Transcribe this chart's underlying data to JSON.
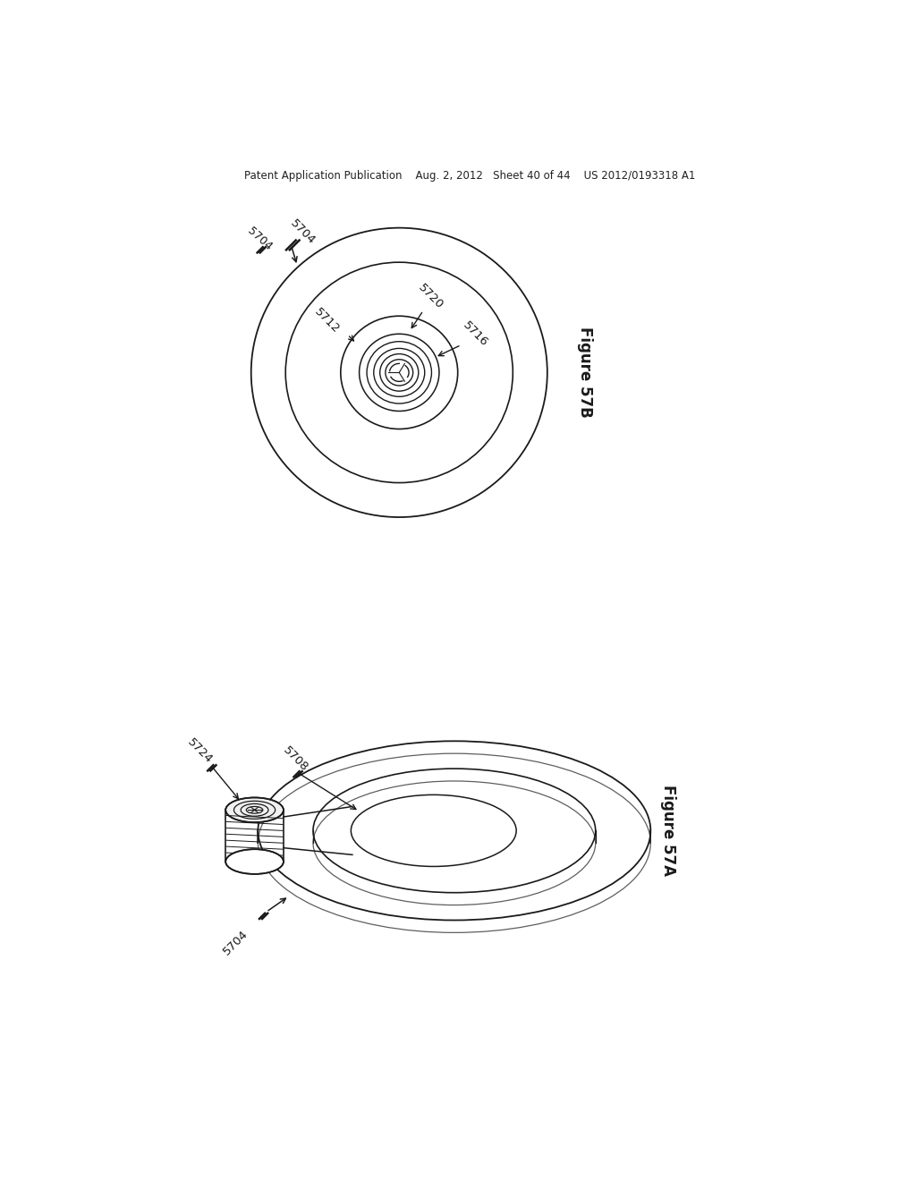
{
  "bg_color": "#ffffff",
  "line_color": "#1a1a1a",
  "header_text": "Patent Application Publication    Aug. 2, 2012   Sheet 40 of 44    US 2012/0193318 A1",
  "fig57b_label": "Figure 57B",
  "fig57a_label": "Figure 57A",
  "label_5704_top": "5704",
  "label_5704_bot": "5704",
  "label_5712": "5712",
  "label_5716": "5716",
  "label_5720": "5720",
  "label_5708": "5708",
  "label_5724": "5724",
  "cx57b": 410,
  "cy57b": 335,
  "cx57a": 480,
  "cy57a": 1010
}
